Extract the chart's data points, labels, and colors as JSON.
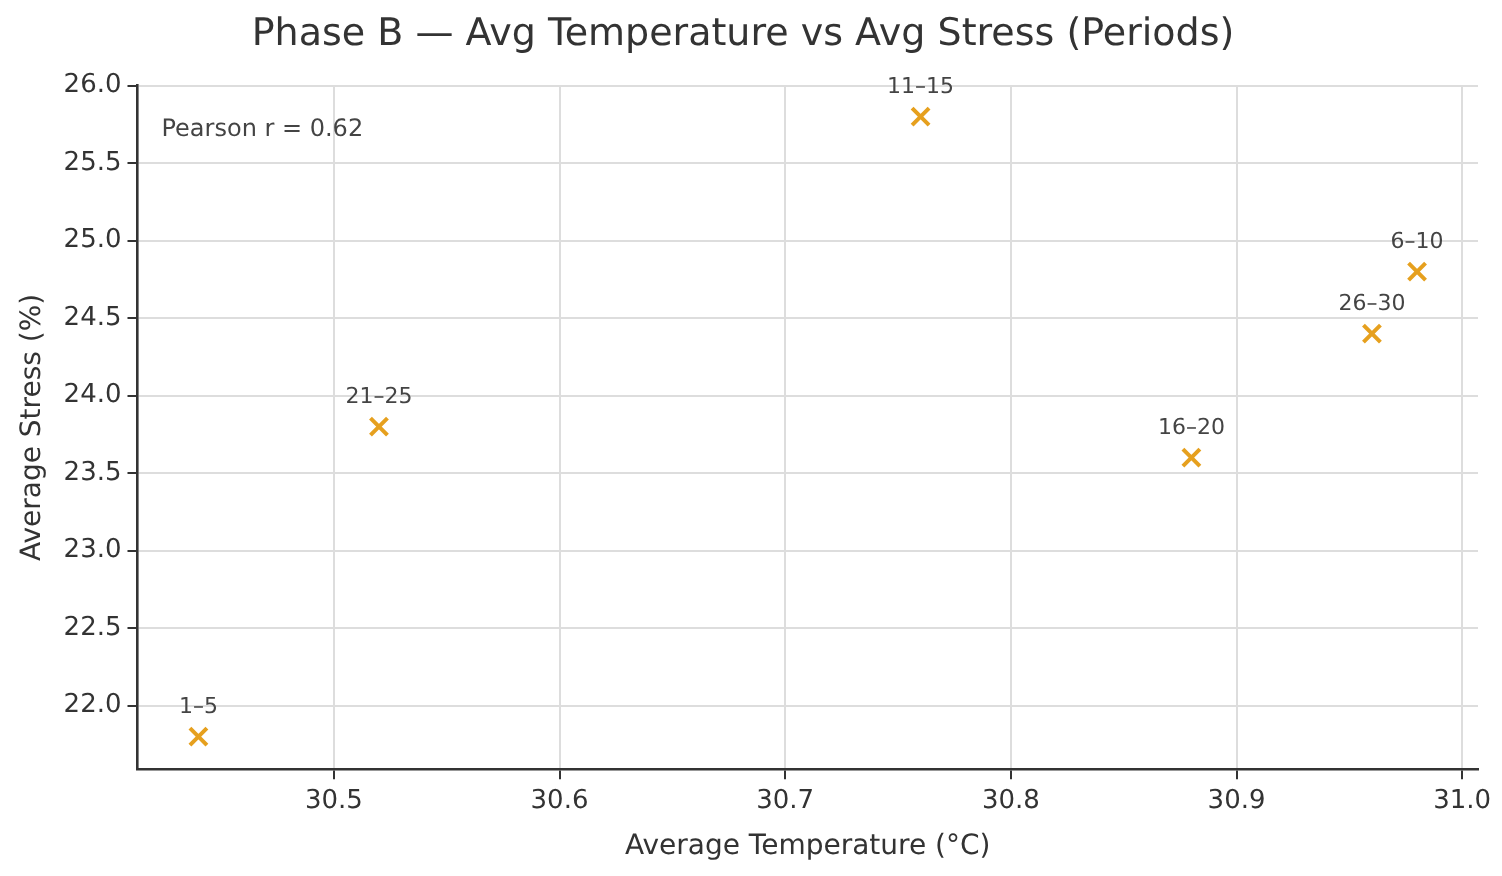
{
  "chart_data": {
    "type": "scatter",
    "title": "Phase B — Avg Temperature vs Avg Stress (Periods)",
    "xlabel": "Average Temperature (°C)",
    "ylabel": "Average Stress (%)",
    "series": [
      {
        "color": "#e6a01e",
        "x": [
          30.44,
          30.98,
          30.76,
          30.88,
          30.52,
          30.96
        ],
        "values": [
          21.8,
          24.8,
          25.8,
          23.6,
          23.8,
          24.4
        ]
      }
    ],
    "annotations": [
      {
        "text": "1–5",
        "x": 30.44,
        "y": 21.8
      },
      {
        "text": "6–10",
        "x": 30.98,
        "y": 24.8
      },
      {
        "text": "11–15",
        "x": 30.76,
        "y": 25.8
      },
      {
        "text": "16–20",
        "x": 30.88,
        "y": 23.6
      },
      {
        "text": "21–25",
        "x": 30.52,
        "y": 23.8
      },
      {
        "text": "26–30",
        "x": 30.96,
        "y": 24.4
      },
      "Pearson r = 0.62"
    ],
    "xlim": [
      30.413,
      31.007
    ],
    "ylim": [
      21.59,
      26.0
    ],
    "xticks": [
      30.5,
      30.6,
      30.7,
      30.8,
      30.9,
      {
        "value": 31.0,
        "label": "31.0"
      }
    ],
    "yticks": [
      {
        "value": 22.0,
        "label": "22.0"
      },
      22.5,
      {
        "value": 23.0,
        "label": "23.0"
      },
      23.5,
      {
        "value": 24.0,
        "label": "24.0"
      },
      24.5,
      {
        "value": 25.0,
        "label": "25.0"
      },
      25.5,
      {
        "value": 26.0,
        "label": "26.0"
      }
    ],
    "grid": true,
    "marker": "cross",
    "legend": false
  }
}
